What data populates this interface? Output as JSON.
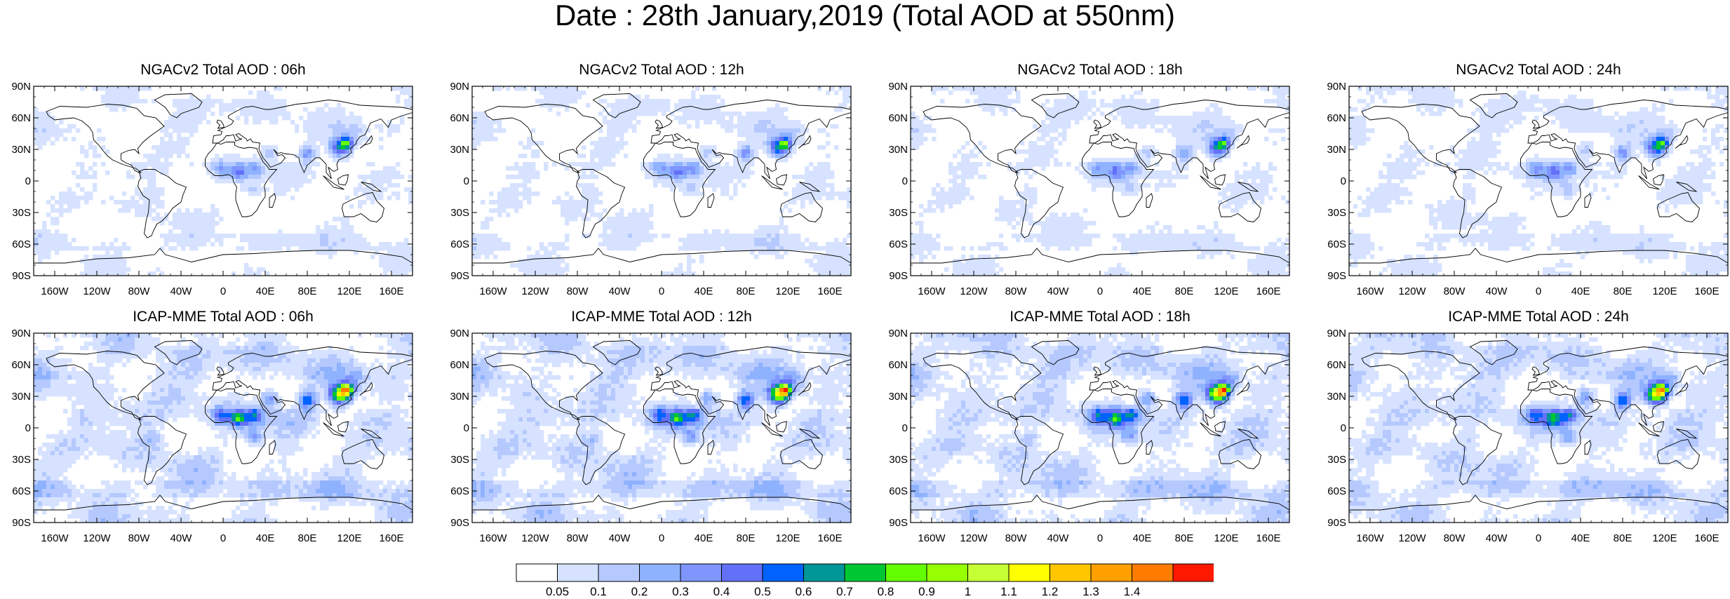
{
  "title": "Date : 28th January,2019 (Total AOD at 550nm)",
  "panels": [
    {
      "title": "NGACv2 Total AOD : 06h",
      "model": "NGACv2",
      "hour": "06h",
      "intensity": 0.6,
      "shift": 0
    },
    {
      "title": "NGACv2 Total AOD : 12h",
      "model": "NGACv2",
      "hour": "12h",
      "intensity": 0.62,
      "shift": 1
    },
    {
      "title": "NGACv2 Total AOD : 18h",
      "model": "NGACv2",
      "hour": "18h",
      "intensity": 0.6,
      "shift": 2
    },
    {
      "title": "NGACv2 Total AOD : 24h",
      "model": "NGACv2",
      "hour": "24h",
      "intensity": 0.63,
      "shift": 3
    },
    {
      "title": "ICAP-MME Total AOD : 06h",
      "model": "ICAP-MME",
      "hour": "06h",
      "intensity": 1.0,
      "shift": 0
    },
    {
      "title": "ICAP-MME Total AOD : 12h",
      "model": "ICAP-MME",
      "hour": "12h",
      "intensity": 1.02,
      "shift": 1
    },
    {
      "title": "ICAP-MME Total AOD : 18h",
      "model": "ICAP-MME",
      "hour": "18h",
      "intensity": 1.03,
      "shift": 2
    },
    {
      "title": "ICAP-MME Total AOD : 24h",
      "model": "ICAP-MME",
      "hour": "24h",
      "intensity": 1.0,
      "shift": 3
    }
  ],
  "lat_ticks": [
    "90N",
    "60N",
    "30N",
    "0",
    "30S",
    "60S",
    "90S"
  ],
  "lon_ticks": [
    "160W",
    "120W",
    "80W",
    "40W",
    "0",
    "40E",
    "80E",
    "120E",
    "160E"
  ],
  "lon_tick_values": [
    -160,
    -120,
    -80,
    -40,
    0,
    40,
    80,
    120,
    160
  ],
  "lat_tick_values": [
    90,
    60,
    30,
    0,
    -30,
    -60,
    -90
  ],
  "colorbar": {
    "labels": [
      "0.05",
      "0.1",
      "0.2",
      "0.3",
      "0.4",
      "0.5",
      "0.6",
      "0.7",
      "0.8",
      "0.9",
      "1",
      "1.1",
      "1.2",
      "1.3",
      "1.4"
    ],
    "colors": [
      "#ffffff",
      "#d6e2ff",
      "#b5c9ff",
      "#8fb2ff",
      "#7f96ff",
      "#6370f8",
      "#0063ff",
      "#009696",
      "#00c633",
      "#63ff00",
      "#96ff00",
      "#c6ff33",
      "#ffff00",
      "#ffc600",
      "#ffa000",
      "#ff7c00",
      "#ff1900"
    ]
  }
}
